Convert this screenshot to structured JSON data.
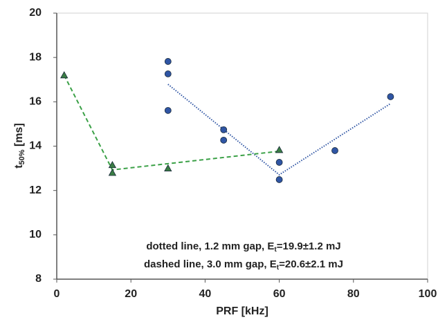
{
  "chart_data": {
    "type": "scatter",
    "xlabel": "PRF [kHz]",
    "ylabel": {
      "main": "t",
      "sub": "50%",
      "rest": " [ms]"
    },
    "xlim": [
      0,
      100
    ],
    "xticks": [
      0,
      20,
      40,
      60,
      80,
      100
    ],
    "ylim": [
      8,
      20
    ],
    "yticks": [
      8,
      10,
      12,
      14,
      16,
      18,
      20
    ],
    "series": [
      {
        "color": "#2f55a4",
        "marker": "circle",
        "x": [
          30,
          30,
          30,
          45,
          45,
          60,
          60,
          75,
          90
        ],
        "values": [
          17.82,
          17.26,
          15.61,
          14.74,
          14.27,
          13.27,
          12.49,
          13.8,
          16.23
        ]
      },
      {
        "color": "#3a7d44",
        "marker": "triangle",
        "x": [
          2,
          15,
          15,
          30,
          60
        ],
        "values": [
          17.2,
          13.15,
          12.8,
          13.0,
          13.83
        ]
      }
    ],
    "lines": [
      {
        "color": "#2f55a4",
        "style": "dotted",
        "x": [
          30,
          60,
          90
        ],
        "values": [
          16.79,
          12.71,
          15.92
        ]
      },
      {
        "color": "#3aa046",
        "style": "dashed",
        "x": [
          2,
          15,
          60
        ],
        "values": [
          17.2,
          12.93,
          13.77
        ]
      }
    ],
    "annotations": [
      {
        "main": "dotted line, 1.2 mm gap, E",
        "sub": "t",
        "rest": "=19.9±1.2 mJ"
      },
      {
        "main": "dashed line, 3.0 mm gap, E",
        "sub": "t",
        "rest": "=20.6±2.1 mJ"
      }
    ]
  }
}
